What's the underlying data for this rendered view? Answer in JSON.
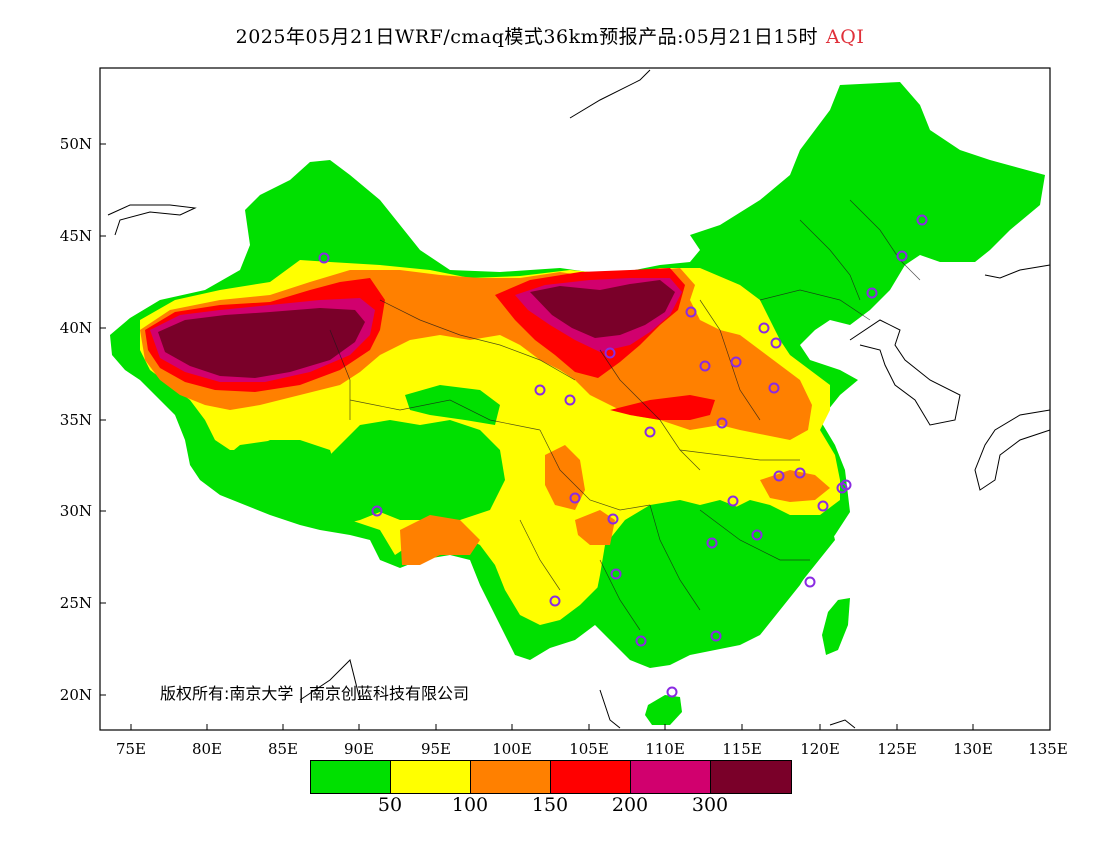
{
  "title": {
    "main": "2025年05月21日WRF/cmaq模式36km预报产品:05月21日15时",
    "variable": "AQI"
  },
  "axes": {
    "x_ticks": [
      "75E",
      "80E",
      "85E",
      "90E",
      "95E",
      "100E",
      "105E",
      "110E",
      "115E",
      "120E",
      "125E",
      "130E",
      "135E"
    ],
    "y_ticks": [
      "50N",
      "45N",
      "40N",
      "35N",
      "30N",
      "25N",
      "20N"
    ]
  },
  "copyright": "版权所有:南京大学 | 南京创蓝科技有限公司",
  "legend": {
    "colors": [
      "#00e000",
      "#ffff00",
      "#ff8000",
      "#ff0000",
      "#d1006e",
      "#7a0029"
    ],
    "labels": [
      "50",
      "100",
      "150",
      "200",
      "300"
    ]
  },
  "colors": {
    "good": "#00e000",
    "moderate": "#ffff00",
    "usg": "#ff8000",
    "unhealthy": "#ff0000",
    "very_unhealthy": "#d1006e",
    "hazardous": "#7a0029",
    "city_marker": "#8a2be2"
  }
}
